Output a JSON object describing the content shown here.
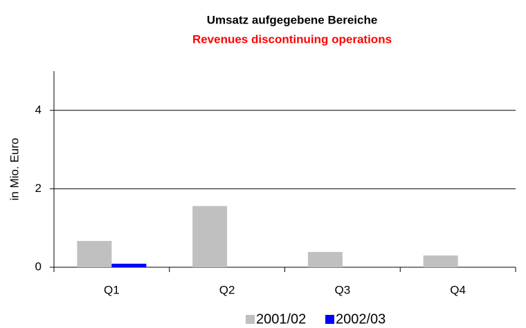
{
  "chart_data": {
    "type": "bar",
    "title": "Umsatz aufgegebene Bereiche",
    "subtitle": "Revenues discontinuing operations",
    "y_label": "in Mio. Euro",
    "categories": [
      "Q1",
      "Q2",
      "Q3",
      "Q4"
    ],
    "series": [
      {
        "name": "2001/02",
        "color": "#c0c0c0",
        "values": [
          0.67,
          1.56,
          0.39,
          0.3
        ]
      },
      {
        "name": "2002/03",
        "color": "#0000ff",
        "values": [
          0.09,
          null,
          null,
          null
        ]
      }
    ],
    "ylim": [
      0,
      5
    ],
    "yticks": [
      0,
      2,
      4
    ],
    "grid": true,
    "legend": "bottom"
  }
}
